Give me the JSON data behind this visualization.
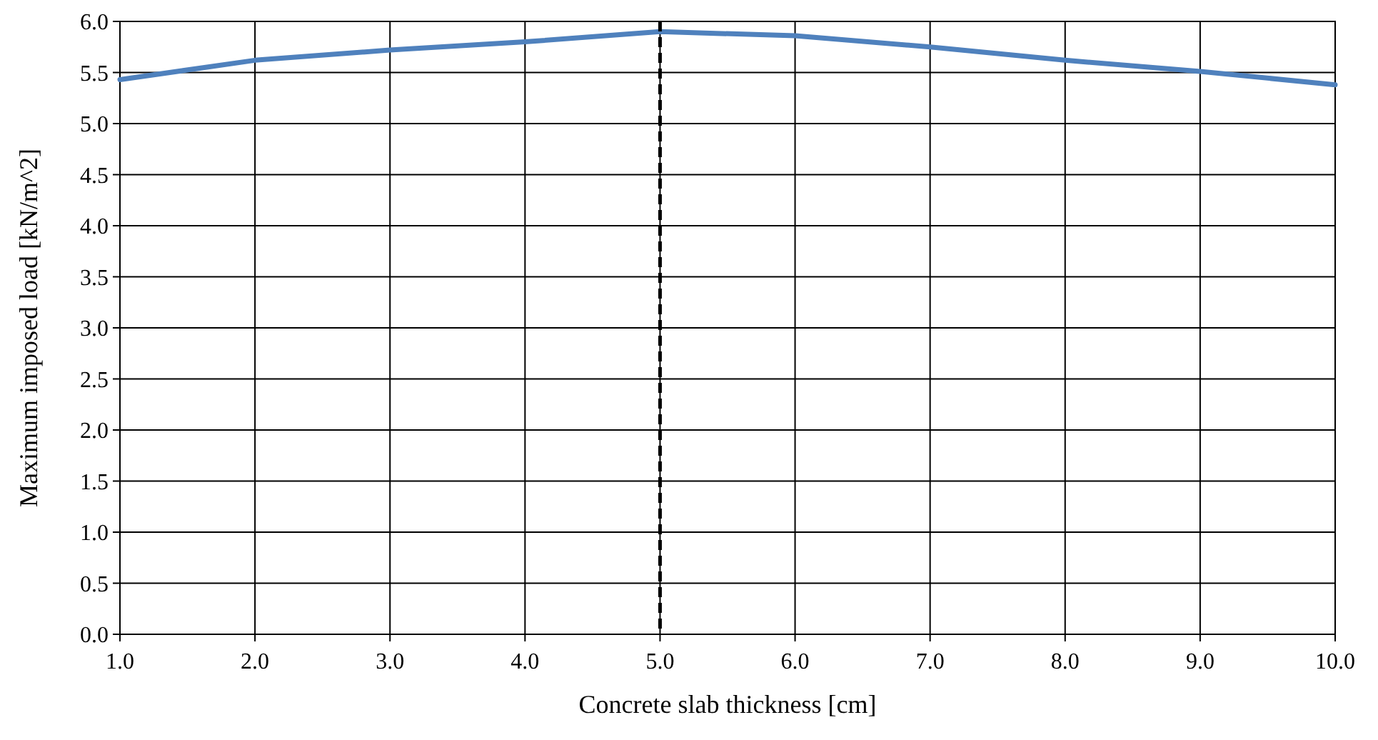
{
  "chart_data": {
    "type": "line",
    "xlabel": "Concrete slab thickness [cm]",
    "ylabel": "Maximum imposed load [kN/m^2]",
    "x": [
      1,
      2,
      3,
      4,
      5,
      6,
      7,
      8,
      9,
      10
    ],
    "series": [
      {
        "color": "#4f81bd",
        "values": [
          5.43,
          5.62,
          5.72,
          5.8,
          5.9,
          5.86,
          5.75,
          5.62,
          5.51,
          5.38
        ]
      }
    ],
    "xlim": [
      1,
      10
    ],
    "ylim": [
      0,
      6
    ],
    "xticks": [
      {
        "value": 1,
        "label": "1.0"
      },
      {
        "value": 2,
        "label": "2.0"
      },
      {
        "value": 3,
        "label": "3.0"
      },
      {
        "value": 4,
        "label": "4.0"
      },
      {
        "value": 5,
        "label": "5.0"
      },
      {
        "value": 6,
        "label": "6.0"
      },
      {
        "value": 7,
        "label": "7.0"
      },
      {
        "value": 8,
        "label": "8.0"
      },
      {
        "value": 9,
        "label": "9.0"
      },
      {
        "value": 10,
        "label": "10.0"
      }
    ],
    "yticks": [
      {
        "value": 0,
        "label": "0.0"
      },
      {
        "value": 0.5,
        "label": "0.5"
      },
      {
        "value": 1,
        "label": "1.0"
      },
      {
        "value": 1.5,
        "label": "1.5"
      },
      {
        "value": 2,
        "label": "2.0"
      },
      {
        "value": 2.5,
        "label": "2.5"
      },
      {
        "value": 3,
        "label": "3.0"
      },
      {
        "value": 3.5,
        "label": "3.5"
      },
      {
        "value": 4,
        "label": "4.0"
      },
      {
        "value": 4.5,
        "label": "4.5"
      },
      {
        "value": 5,
        "label": "5.0"
      },
      {
        "value": 5.5,
        "label": "5.5"
      },
      {
        "value": 6,
        "label": "6.0"
      }
    ],
    "ref_lines": [
      {
        "axis": "x",
        "value": 5,
        "color": "#000000",
        "line_style": "dashed"
      }
    ],
    "grid": true,
    "marker": "none",
    "line_style": "solid"
  }
}
